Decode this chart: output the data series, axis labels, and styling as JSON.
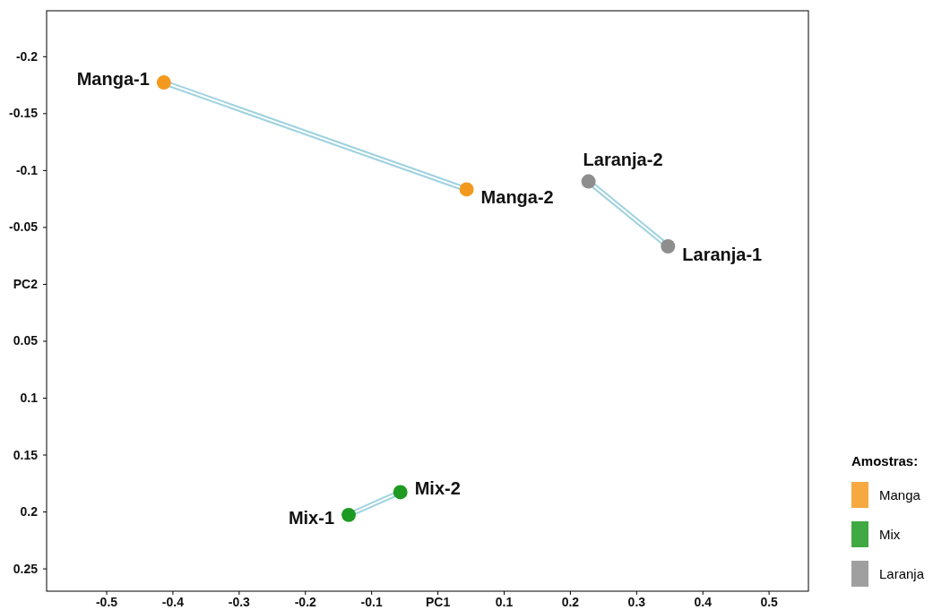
{
  "chart_data": {
    "type": "scatter",
    "xlim": [
      -0.59,
      0.56
    ],
    "xticks": [
      -0.5,
      -0.4,
      -0.3,
      -0.2,
      -0.1,
      {
        "value": 0,
        "label": "PC1"
      },
      0.1,
      0.2,
      0.3,
      0.4,
      0.5
    ],
    "ylim": [
      0.27,
      -0.24
    ],
    "yticks": [
      -0.2,
      -0.15,
      -0.1,
      -0.05,
      {
        "value": 0,
        "label": "PC2"
      },
      0.05,
      0.1,
      0.15,
      0.2,
      0.25
    ],
    "series": [
      {
        "name": "Manga",
        "color": "#f39a1e",
        "x": [
          -0.413,
          0.044
        ],
        "values": [
          -0.177,
          -0.083
        ]
      },
      {
        "name": "Mix",
        "color": "#1e9a22",
        "x": [
          -0.134,
          -0.056
        ],
        "values": [
          0.203,
          0.183
        ]
      },
      {
        "name": "Laranja",
        "color": "#8e8e8e",
        "x": [
          0.348,
          0.228
        ],
        "values": [
          -0.033,
          -0.09
        ]
      }
    ],
    "annotations": [
      {
        "text": "Manga-1",
        "x": -0.413,
        "y": -0.177
      },
      {
        "text": "Manga-2",
        "x": 0.044,
        "y": -0.083
      },
      {
        "text": "Laranja-2",
        "x": 0.228,
        "y": -0.09
      },
      {
        "text": "Laranja-1",
        "x": 0.348,
        "y": -0.033
      },
      {
        "text": "Mix-1",
        "x": -0.134,
        "y": 0.203
      },
      {
        "text": "Mix-2",
        "x": -0.056,
        "y": 0.183
      }
    ],
    "legend_title": "Amostras:",
    "legend": "right",
    "grid": false,
    "marker": "circle"
  }
}
